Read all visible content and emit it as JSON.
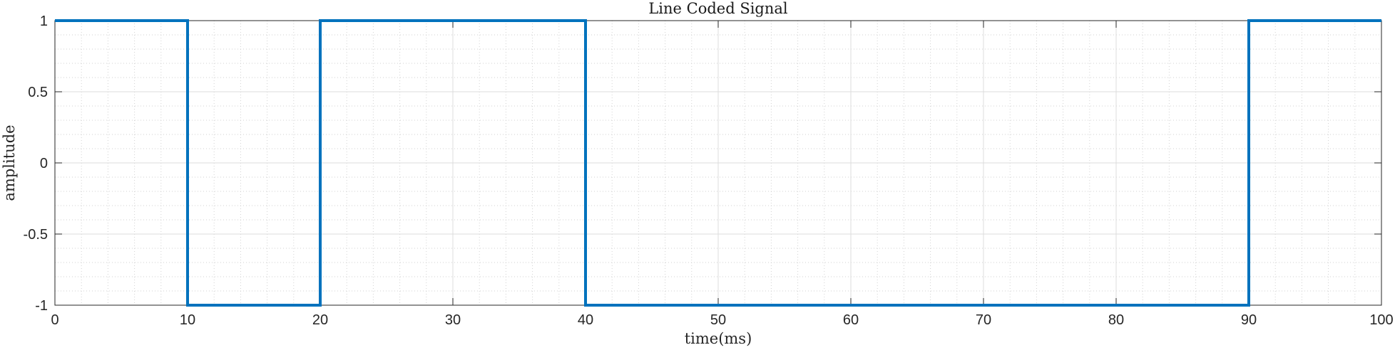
{
  "chart_data": {
    "type": "line",
    "title": "Line Coded Signal",
    "xlabel": "time(ms)",
    "ylabel": "amplitude",
    "xlim": [
      0,
      100
    ],
    "ylim": [
      -1,
      1
    ],
    "xticks": [
      0,
      10,
      20,
      30,
      40,
      50,
      60,
      70,
      80,
      90,
      100
    ],
    "yticks": [
      -1,
      -0.5,
      0,
      0.5,
      1
    ],
    "xtick_labels": [
      "0",
      "10",
      "20",
      "30",
      "40",
      "50",
      "60",
      "70",
      "80",
      "90",
      "100"
    ],
    "ytick_labels": [
      "-1",
      "-0.5",
      "0",
      "0.5",
      "1"
    ],
    "grid": true,
    "minor_grid": true,
    "step": true,
    "series": [
      {
        "color": "#0072BD",
        "x": [
          0,
          10,
          10,
          20,
          20,
          40,
          40,
          90,
          90,
          100
        ],
        "y": [
          1,
          1,
          -1,
          -1,
          1,
          1,
          -1,
          -1,
          1,
          1
        ]
      }
    ]
  }
}
